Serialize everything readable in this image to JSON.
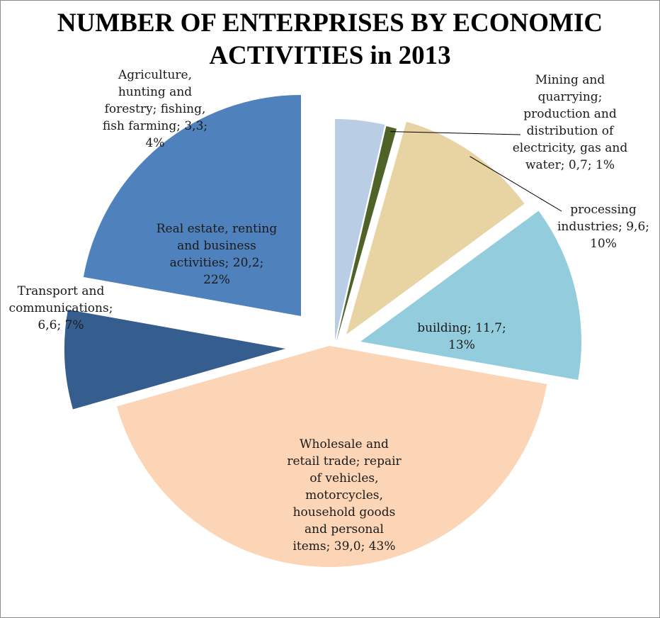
{
  "chart_data": {
    "type": "pie",
    "title": "NUMBER OF ENTERPRISES BY ECONOMIC ACTIVITIES in 2013",
    "exploded": true,
    "slices": [
      {
        "label": "Agriculture, hunting and forestry; fishing, fish farming",
        "value": 3.3,
        "percent": 4,
        "color": "#b9cde5",
        "lines": [
          "Agriculture,",
          "hunting and",
          "forestry; fishing,",
          "fish farming; 3,3;",
          "4%"
        ]
      },
      {
        "label": "Mining and quarrying; production and distribution of electricity, gas and water",
        "value": 0.7,
        "percent": 1,
        "color": "#4f6228",
        "lines": [
          "Mining and",
          "quarrying;",
          "production and",
          "distribution of",
          "electricity, gas and",
          "water; 0,7; 1%"
        ]
      },
      {
        "label": "processing industries",
        "value": 9.6,
        "percent": 10,
        "color": "#e8d3a3",
        "lines": [
          "processing",
          "industries; 9,6;",
          "10%"
        ]
      },
      {
        "label": "building",
        "value": 11.7,
        "percent": 13,
        "color": "#93cddd",
        "lines": [
          "building; 11,7;",
          "13%"
        ]
      },
      {
        "label": "Wholesale and retail trade; repair of vehicles, motorcycles, household goods and personal items",
        "value": 39.0,
        "percent": 43,
        "color": "#fbd5b5",
        "lines": [
          "Wholesale and",
          "retail trade;  repair",
          "of vehicles,",
          "motorcycles,",
          "household goods",
          "and personal",
          "items; 39,0; 43%"
        ]
      },
      {
        "label": "Transport and communications",
        "value": 6.6,
        "percent": 7,
        "color": "#355d8e",
        "lines": [
          "Transport and",
          "communications;",
          "6,6; 7%"
        ]
      },
      {
        "label": "Real estate, renting and business activities",
        "value": 20.2,
        "percent": 22,
        "color": "#4f81bd",
        "lines": [
          "Real estate, renting",
          "and business",
          "activities; 20,2;",
          "22%"
        ]
      }
    ]
  }
}
